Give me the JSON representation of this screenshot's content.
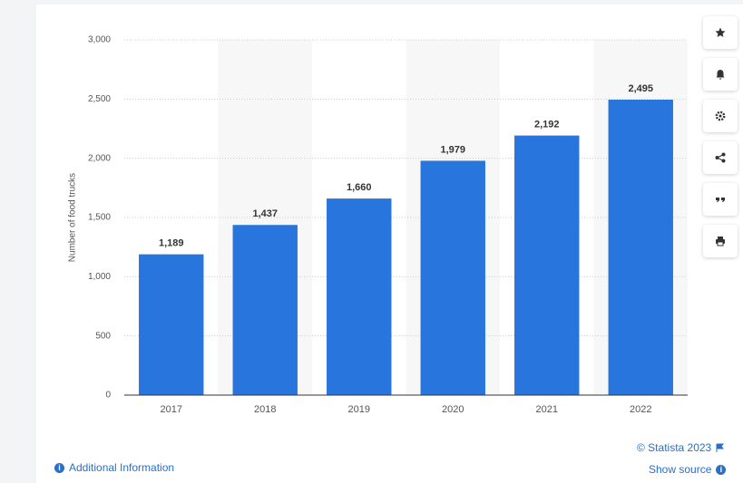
{
  "chart_data": {
    "type": "bar",
    "y_label": "Number of food trucks",
    "categories": [
      "2017",
      "2018",
      "2019",
      "2020",
      "2021",
      "2022"
    ],
    "values": [
      1189,
      1437,
      1660,
      1979,
      2192,
      2495
    ],
    "value_labels": [
      "1,189",
      "1,437",
      "1,660",
      "1,979",
      "2,192",
      "2,495"
    ],
    "color": "#2876dd",
    "ylim": [
      0,
      3000
    ],
    "yticks": [
      0,
      500,
      {
        "value": 1000,
        "label": "1,000"
      },
      {
        "value": 1500,
        "label": "1,500"
      },
      {
        "value": 2000,
        "label": "2,000"
      },
      {
        "value": 2500,
        "label": "2,500"
      },
      {
        "value": 3000,
        "label": "3,000"
      }
    ],
    "grid": true
  },
  "footer": {
    "copyright": "© Statista 2023",
    "show_source": "Show source",
    "additional_info": "Additional Information"
  }
}
